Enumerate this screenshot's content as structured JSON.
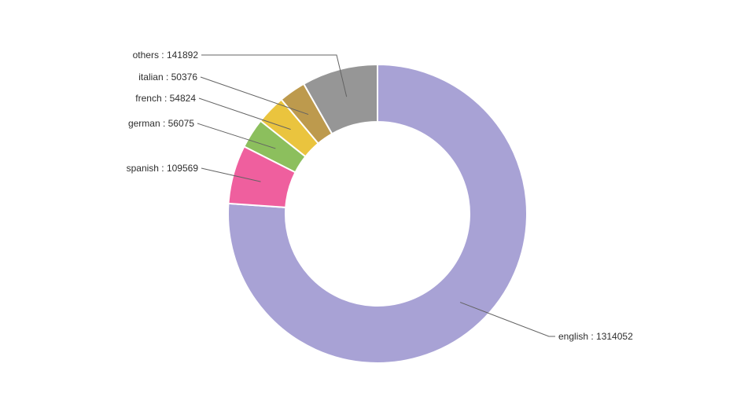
{
  "chart_data": {
    "type": "pie",
    "subtype": "donut",
    "title": "",
    "legend_position": "none",
    "background_color": "#ffffff",
    "hole_ratio": 0.62,
    "start_angle_deg": 0,
    "direction": "clockwise",
    "labels": [
      "english",
      "spanish",
      "german",
      "french",
      "italian",
      "others"
    ],
    "values": [
      1314052,
      109569,
      56075,
      54824,
      50376,
      141892
    ],
    "colors": [
      "#a8a2d5",
      "#ef5f9e",
      "#8cbf5d",
      "#eac43e",
      "#bd9a4d",
      "#969696"
    ],
    "separator_color": "#ffffff",
    "leader_line_color": "#636363",
    "annotations": {
      "english": "english : 1314052",
      "spanish": "spanish : 109569",
      "german": "german : 56075",
      "french": "french : 54824",
      "italian": "italian : 50376",
      "others": "others : 141892"
    }
  }
}
